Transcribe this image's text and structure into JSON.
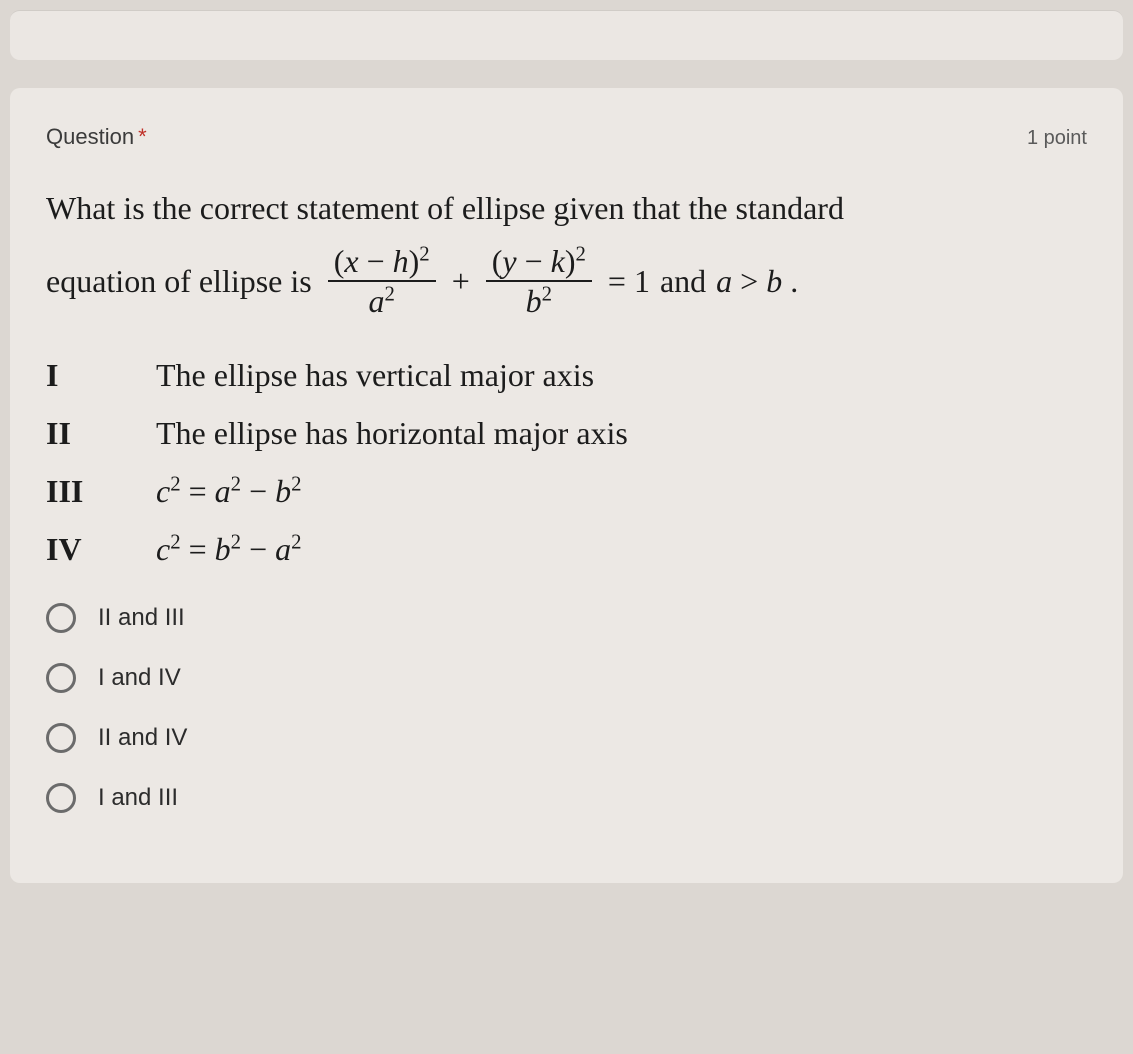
{
  "header": {
    "question_label": "Question",
    "required_marker": "*",
    "points": "1 point"
  },
  "prompt": {
    "line1": "What is the correct statement of ellipse given that the standard",
    "line2_prefix": "equation of ellipse is",
    "equation": {
      "frac1_num_a": "(",
      "frac1_num_b": "x",
      "frac1_num_c": " − ",
      "frac1_num_d": "h",
      "frac1_num_e": ")",
      "frac1_num_exp": "2",
      "frac1_den_base": "a",
      "frac1_den_exp": "2",
      "plus": "+",
      "frac2_num_a": "(",
      "frac2_num_b": "y",
      "frac2_num_c": " − ",
      "frac2_num_d": "k",
      "frac2_num_e": ")",
      "frac2_num_exp": "2",
      "frac2_den_base": "b",
      "frac2_den_exp": "2",
      "eq": " = 1",
      "and": " and ",
      "cond_a": "a",
      "cond_gt": " > ",
      "cond_b": "b",
      "period": " ."
    }
  },
  "statements": [
    {
      "label": "I",
      "text": "The ellipse has vertical major axis"
    },
    {
      "label": "II",
      "text": "The ellipse has horizontal major axis"
    },
    {
      "label": "III",
      "lhs_base": "c",
      "lhs_exp": "2",
      "eq": " = ",
      "r1_base": "a",
      "r1_exp": "2",
      "minus": " − ",
      "r2_base": "b",
      "r2_exp": "2"
    },
    {
      "label": "IV",
      "lhs_base": "c",
      "lhs_exp": "2",
      "eq": " = ",
      "r1_base": "b",
      "r1_exp": "2",
      "minus": " − ",
      "r2_base": "a",
      "r2_exp": "2"
    }
  ],
  "options": [
    {
      "label": "II and III"
    },
    {
      "label": "I and IV"
    },
    {
      "label": "II and IV"
    },
    {
      "label": "I and III"
    }
  ],
  "colors": {
    "page_bg": "#dcd7d2",
    "card_bg": "#ece8e4",
    "text": "#1c1c1c",
    "asterisk": "#c03028",
    "radio_border": "#6b6b6b"
  },
  "typography": {
    "serif": "Times New Roman",
    "sans": "Arial",
    "body_size_pt": 24,
    "header_size_pt": 16,
    "option_size_pt": 18
  }
}
